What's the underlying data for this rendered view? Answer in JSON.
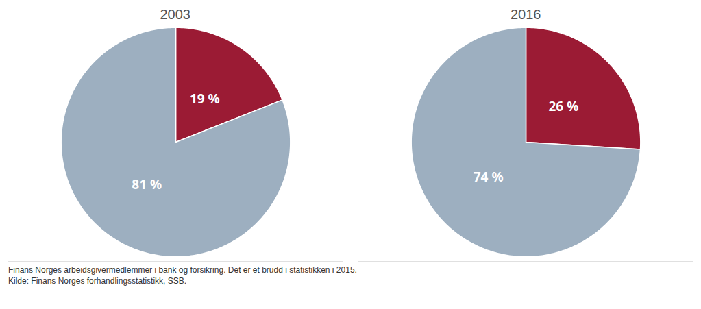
{
  "chart_data": [
    {
      "type": "pie",
      "title": "2003",
      "values": [
        19,
        81
      ],
      "value_labels": [
        "19 %",
        "81 %"
      ],
      "colors": [
        "#9B1B34",
        "#9DAFC0"
      ],
      "data_labels": true
    },
    {
      "type": "pie",
      "title": "2016",
      "values": [
        26,
        74
      ],
      "value_labels": [
        "26 %",
        "74 %"
      ],
      "colors": [
        "#9B1B34",
        "#9DAFC0"
      ],
      "data_labels": true,
      "annotations": [
        "Finans Norges arbeidsgivermedlemmer i bank og forsikring. Det er et brudd i statistikken i 2015.",
        "Kilde: Finans Norges forhandlingsstatistikk, SSB."
      ]
    }
  ]
}
